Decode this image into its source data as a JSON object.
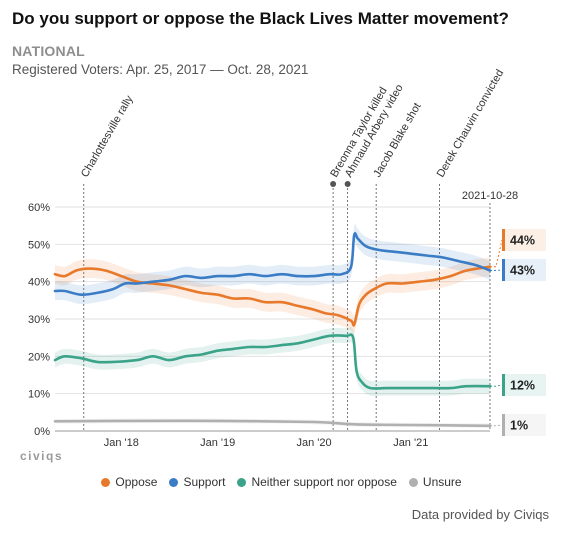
{
  "header": {
    "title": "Do you support or oppose the Black Lives Matter movement?",
    "scope": "NATIONAL",
    "description": "Registered Voters: Apr. 25, 2017 — Oct. 28, 2021"
  },
  "brand": "civiqs",
  "credit": "Data provided by Civiqs",
  "chart_data": {
    "type": "line",
    "x_range": [
      "2017-04-25",
      "2021-10-28"
    ],
    "ylim": [
      0,
      60
    ],
    "y_ticks": [
      0,
      10,
      20,
      30,
      40,
      50,
      60
    ],
    "y_tick_labels": [
      "0%",
      "10%",
      "20%",
      "30%",
      "40%",
      "50%",
      "60%"
    ],
    "x_ticks": [
      {
        "date": "2018-01-01",
        "label": "Jan '18"
      },
      {
        "date": "2019-01-01",
        "label": "Jan '19"
      },
      {
        "date": "2020-01-01",
        "label": "Jan '20"
      },
      {
        "date": "2021-01-01",
        "label": "Jan '21"
      }
    ],
    "grid": "horizontal",
    "legend_position": "bottom",
    "end_date_label": "2021-10-28",
    "events": [
      {
        "date": "2017-08-12",
        "label": "Charlottesville rally",
        "marker": false
      },
      {
        "date": "2020-03-13",
        "label": "Breonna Taylor killed",
        "marker": true
      },
      {
        "date": "2020-05-07",
        "label": "Ahmaud Arbery video",
        "marker": true
      },
      {
        "date": "2020-08-23",
        "label": "Jacob Blake shot",
        "marker": false
      },
      {
        "date": "2021-04-20",
        "label": "Derek Chauvin convicted",
        "marker": false
      }
    ],
    "series": [
      {
        "name": "Oppose",
        "color": "#e8792b",
        "band": 2.5,
        "end_label": "44%",
        "points": [
          [
            "2017-04-25",
            42
          ],
          [
            "2017-06-01",
            41.5
          ],
          [
            "2017-07-15",
            43
          ],
          [
            "2017-09-01",
            43.5
          ],
          [
            "2017-11-01",
            43
          ],
          [
            "2018-01-01",
            41.5
          ],
          [
            "2018-03-01",
            40
          ],
          [
            "2018-05-01",
            39.5
          ],
          [
            "2018-07-01",
            39
          ],
          [
            "2018-09-01",
            38
          ],
          [
            "2018-11-01",
            37
          ],
          [
            "2019-01-01",
            36.5
          ],
          [
            "2019-03-01",
            35.5
          ],
          [
            "2019-05-01",
            35.5
          ],
          [
            "2019-07-01",
            34.5
          ],
          [
            "2019-09-01",
            34.5
          ],
          [
            "2019-11-01",
            33.5
          ],
          [
            "2020-01-01",
            32.5
          ],
          [
            "2020-02-15",
            31.5
          ],
          [
            "2020-04-01",
            31
          ],
          [
            "2020-05-20",
            29.5
          ],
          [
            "2020-06-01",
            28.5
          ],
          [
            "2020-06-20",
            34
          ],
          [
            "2020-07-15",
            36.5
          ],
          [
            "2020-08-15",
            38
          ],
          [
            "2020-10-01",
            39.5
          ],
          [
            "2020-12-01",
            39.5
          ],
          [
            "2021-02-01",
            40
          ],
          [
            "2021-04-01",
            40.5
          ],
          [
            "2021-06-01",
            41.5
          ],
          [
            "2021-08-01",
            43
          ],
          [
            "2021-10-28",
            44
          ]
        ]
      },
      {
        "name": "Support",
        "color": "#3a7cc5",
        "band": 2.5,
        "end_label": "43%",
        "points": [
          [
            "2017-04-25",
            37.5
          ],
          [
            "2017-06-01",
            37.5
          ],
          [
            "2017-08-01",
            36.5
          ],
          [
            "2017-10-01",
            37
          ],
          [
            "2017-12-01",
            38
          ],
          [
            "2018-01-15",
            39.5
          ],
          [
            "2018-03-01",
            39.5
          ],
          [
            "2018-05-01",
            40
          ],
          [
            "2018-07-01",
            40.5
          ],
          [
            "2018-09-01",
            41.5
          ],
          [
            "2018-11-01",
            41
          ],
          [
            "2019-01-01",
            41.5
          ],
          [
            "2019-03-01",
            41.5
          ],
          [
            "2019-05-01",
            42
          ],
          [
            "2019-07-01",
            41.5
          ],
          [
            "2019-09-01",
            42
          ],
          [
            "2019-11-01",
            41.5
          ],
          [
            "2020-01-01",
            41.5
          ],
          [
            "2020-03-01",
            42
          ],
          [
            "2020-04-15",
            42
          ],
          [
            "2020-05-20",
            44
          ],
          [
            "2020-06-01",
            52.5
          ],
          [
            "2020-06-15",
            51.5
          ],
          [
            "2020-07-15",
            49.5
          ],
          [
            "2020-09-01",
            48.5
          ],
          [
            "2020-11-01",
            48
          ],
          [
            "2021-01-01",
            47.5
          ],
          [
            "2021-03-01",
            47
          ],
          [
            "2021-05-01",
            46.5
          ],
          [
            "2021-07-01",
            45.5
          ],
          [
            "2021-09-01",
            44.5
          ],
          [
            "2021-10-28",
            43
          ]
        ]
      },
      {
        "name": "Neither support nor oppose",
        "color": "#3aa38a",
        "band": 2.0,
        "end_label": "12%",
        "points": [
          [
            "2017-04-25",
            19
          ],
          [
            "2017-06-01",
            20
          ],
          [
            "2017-08-01",
            19.5
          ],
          [
            "2017-10-01",
            18.5
          ],
          [
            "2017-12-01",
            18.5
          ],
          [
            "2018-03-01",
            19
          ],
          [
            "2018-05-01",
            20
          ],
          [
            "2018-07-01",
            19
          ],
          [
            "2018-09-01",
            20
          ],
          [
            "2018-11-01",
            20.5
          ],
          [
            "2019-01-01",
            21.5
          ],
          [
            "2019-03-01",
            22
          ],
          [
            "2019-05-01",
            22.5
          ],
          [
            "2019-07-01",
            22.5
          ],
          [
            "2019-09-01",
            23
          ],
          [
            "2019-11-01",
            23.5
          ],
          [
            "2020-01-01",
            24.5
          ],
          [
            "2020-03-01",
            25.5
          ],
          [
            "2020-05-01",
            25.5
          ],
          [
            "2020-05-28",
            25
          ],
          [
            "2020-06-10",
            16
          ],
          [
            "2020-07-01",
            13
          ],
          [
            "2020-08-01",
            11.5
          ],
          [
            "2020-10-01",
            11.5
          ],
          [
            "2020-12-01",
            11.5
          ],
          [
            "2021-02-01",
            11.5
          ],
          [
            "2021-04-01",
            11.5
          ],
          [
            "2021-06-01",
            11.5
          ],
          [
            "2021-08-01",
            12
          ],
          [
            "2021-10-28",
            12
          ]
        ]
      },
      {
        "name": "Unsure",
        "color": "#b0b0b0",
        "band": 0.6,
        "end_label": "1%",
        "points": [
          [
            "2017-04-25",
            2.6
          ],
          [
            "2018-01-01",
            2.7
          ],
          [
            "2019-01-01",
            2.7
          ],
          [
            "2020-01-01",
            2.4
          ],
          [
            "2020-06-01",
            1.8
          ],
          [
            "2021-01-01",
            1.6
          ],
          [
            "2021-10-28",
            1.4
          ]
        ]
      }
    ]
  }
}
